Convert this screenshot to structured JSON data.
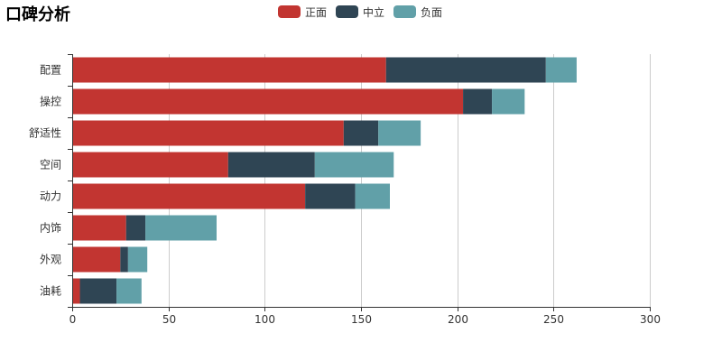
{
  "chart_data": {
    "type": "bar",
    "orientation": "horizontal",
    "stacked": true,
    "title": "口碑分析",
    "categories": [
      "配置",
      "操控",
      "舒适性",
      "空间",
      "动力",
      "内饰",
      "外观",
      "油耗"
    ],
    "series": [
      {
        "name": "正面",
        "color": "#c23531",
        "values": [
          163,
          203,
          141,
          81,
          121,
          28,
          25,
          4
        ]
      },
      {
        "name": "中立",
        "color": "#2f4554",
        "values": [
          83,
          15,
          18,
          45,
          26,
          10,
          4,
          19
        ]
      },
      {
        "name": "负面",
        "color": "#61a0a8",
        "values": [
          16,
          17,
          22,
          41,
          18,
          37,
          10,
          13
        ]
      }
    ],
    "xlim": [
      0,
      300
    ],
    "xticks": [
      0,
      50,
      100,
      150,
      200,
      250,
      300
    ],
    "grid": true,
    "legend_position": "top-center"
  }
}
